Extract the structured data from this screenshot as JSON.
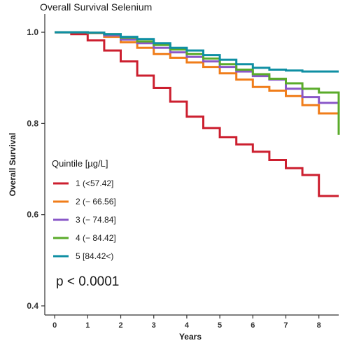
{
  "chart_data": {
    "type": "line",
    "title": "Overall Survival Selenium",
    "xlabel": "Years",
    "ylabel": "Overall Survival",
    "xlim": [
      -0.3,
      8.6
    ],
    "ylim": [
      0.38,
      1.04
    ],
    "xticks": [
      "0",
      "1",
      "2",
      "3",
      "4",
      "5",
      "6",
      "7",
      "8"
    ],
    "yticks": [
      "0.4",
      "0.6",
      "0.8",
      "1.0"
    ],
    "grid": false,
    "legend": {
      "title": "Quintile [µg/L]",
      "placement": "left-center"
    },
    "annotation": "p < 0.0001",
    "series": [
      {
        "name": "1 (<57.42]",
        "color": "#cc1f2f",
        "x": [
          0,
          0.5,
          1,
          1.5,
          2,
          2.5,
          3,
          3.5,
          4,
          4.5,
          5,
          5.5,
          6,
          6.5,
          7,
          7.5,
          8,
          8.6
        ],
        "y": [
          1.0,
          0.996,
          0.982,
          0.96,
          0.936,
          0.905,
          0.878,
          0.848,
          0.815,
          0.79,
          0.77,
          0.754,
          0.738,
          0.72,
          0.702,
          0.687,
          0.641,
          0.641
        ]
      },
      {
        "name": "2 (− 66.56]",
        "color": "#f07d1a",
        "x": [
          0,
          0.5,
          1,
          1.5,
          2,
          2.5,
          3,
          3.5,
          4,
          4.5,
          5,
          5.5,
          6,
          6.5,
          7,
          7.5,
          8,
          8.6
        ],
        "y": [
          1.0,
          1.0,
          0.998,
          0.99,
          0.978,
          0.966,
          0.952,
          0.944,
          0.934,
          0.924,
          0.91,
          0.896,
          0.88,
          0.872,
          0.86,
          0.84,
          0.822,
          0.822
        ]
      },
      {
        "name": "3 (− 74.84]",
        "color": "#8a58c8",
        "x": [
          0,
          0.5,
          1,
          1.5,
          2,
          2.5,
          3,
          3.5,
          4,
          4.5,
          5,
          5.5,
          6,
          6.5,
          7,
          7.5,
          8,
          8.6
        ],
        "y": [
          1.0,
          1.0,
          0.999,
          0.993,
          0.984,
          0.976,
          0.966,
          0.956,
          0.946,
          0.936,
          0.924,
          0.914,
          0.904,
          0.896,
          0.876,
          0.858,
          0.845,
          0.845
        ]
      },
      {
        "name": "4 (− 84.42]",
        "color": "#5aab2a",
        "x": [
          0,
          0.5,
          1,
          1.5,
          2,
          2.5,
          3,
          3.5,
          4,
          4.5,
          5,
          5.5,
          6,
          6.5,
          7,
          7.5,
          8,
          8.6
        ],
        "y": [
          1.0,
          1.0,
          0.999,
          0.996,
          0.988,
          0.98,
          0.972,
          0.962,
          0.952,
          0.942,
          0.93,
          0.918,
          0.908,
          0.898,
          0.888,
          0.876,
          0.868,
          0.775
        ]
      },
      {
        "name": "5 [84.42<)",
        "color": "#0f8fa3",
        "x": [
          0,
          0.5,
          1,
          1.5,
          2,
          2.5,
          3,
          3.5,
          4,
          4.5,
          5,
          5.5,
          6,
          6.5,
          7,
          7.5,
          8,
          8.6
        ],
        "y": [
          1.0,
          1.0,
          0.999,
          0.996,
          0.99,
          0.985,
          0.976,
          0.966,
          0.96,
          0.95,
          0.94,
          0.93,
          0.922,
          0.918,
          0.916,
          0.914,
          0.914,
          0.914
        ]
      }
    ]
  }
}
